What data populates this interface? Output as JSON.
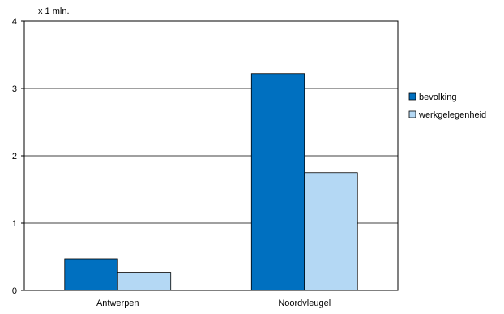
{
  "chart_data": {
    "type": "bar",
    "unit_label": "x 1 mln.",
    "categories": [
      "Antwerpen",
      "Noordvleugel"
    ],
    "series": [
      {
        "name": "bevolking",
        "values": [
          0.47,
          3.22
        ],
        "color": "#0070C0"
      },
      {
        "name": "werkgelegenheid",
        "values": [
          0.27,
          1.75
        ],
        "color": "#B4D8F4"
      }
    ],
    "ylim": [
      0,
      4
    ],
    "yticks": [
      "0",
      "1",
      "2",
      "3",
      "4"
    ],
    "grid": true,
    "legend_position": "right"
  }
}
